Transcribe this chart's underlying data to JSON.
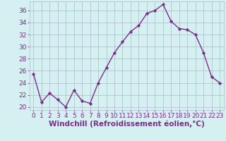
{
  "x": [
    0,
    1,
    2,
    3,
    4,
    5,
    6,
    7,
    8,
    9,
    10,
    11,
    12,
    13,
    14,
    15,
    16,
    17,
    18,
    19,
    20,
    21,
    22,
    23
  ],
  "y": [
    25.5,
    20.8,
    22.3,
    21.2,
    20.0,
    22.8,
    21.0,
    20.6,
    24.0,
    26.5,
    29.0,
    30.8,
    32.5,
    33.5,
    35.5,
    36.0,
    37.0,
    34.2,
    33.0,
    32.8,
    32.0,
    29.0,
    25.0,
    24.0
  ],
  "line_color": "#7B2D8B",
  "marker": "D",
  "marker_size": 2.2,
  "bg_color": "#d4f0f0",
  "grid_color": "#b0b8cc",
  "xlabel": "Windchill (Refroidissement éolien,°C)",
  "xlim": [
    -0.5,
    23.5
  ],
  "ylim": [
    19.5,
    37.5
  ],
  "yticks": [
    20,
    22,
    24,
    26,
    28,
    30,
    32,
    34,
    36
  ],
  "xticks": [
    0,
    1,
    2,
    3,
    4,
    5,
    6,
    7,
    8,
    9,
    10,
    11,
    12,
    13,
    14,
    15,
    16,
    17,
    18,
    19,
    20,
    21,
    22,
    23
  ],
  "xlabel_fontsize": 7.5,
  "tick_fontsize": 6.5,
  "line_width": 1.0
}
